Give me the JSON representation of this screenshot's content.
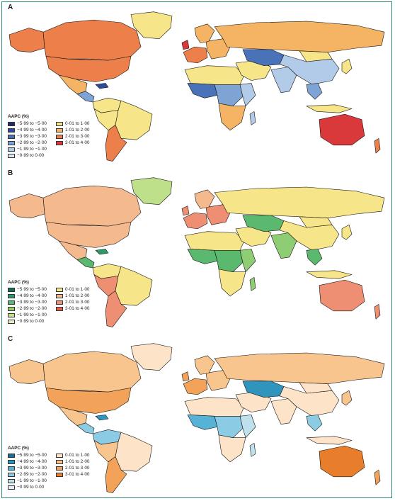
{
  "panels": [
    {
      "letter": "A",
      "legend_title": "AAPC (%)",
      "legend_left": [
        {
          "label": "−5·99 to −5·00",
          "color": "#1f2a6b"
        },
        {
          "label": "−4·99 to −4·00",
          "color": "#2e4b9a"
        },
        {
          "label": "−3·99 to −3·00",
          "color": "#4a72b8"
        },
        {
          "label": "−2·99 to −2·00",
          "color": "#7ea4d6"
        },
        {
          "label": "−1·99 to −1·00",
          "color": "#b2cbe8"
        },
        {
          "label": "−0·99 to 0·00",
          "color": "#dde8f4"
        }
      ],
      "legend_right": [
        {
          "label": "0·01 to 1·00",
          "color": "#f7e58a"
        },
        {
          "label": "1·01 to 2·00",
          "color": "#f5b364"
        },
        {
          "label": "2·01 to 3·00",
          "color": "#ec7f4a"
        },
        {
          "label": "3·01 to 4·00",
          "color": "#d9393a"
        }
      ],
      "palette": {
        "ocean": "#ffffff",
        "border": "#111111",
        "default": "#f7e58a"
      }
    },
    {
      "letter": "B",
      "legend_title": "AAPC (%)",
      "legend_left": [
        {
          "label": "−5·99 to −5·00",
          "color": "#0f6e5a"
        },
        {
          "label": "−4·99 to −4·00",
          "color": "#2c9a6c"
        },
        {
          "label": "−3·99 to −3·00",
          "color": "#5bb86f"
        },
        {
          "label": "−2·99 to −2·00",
          "color": "#8fcd74"
        },
        {
          "label": "−1·99 to −1·00",
          "color": "#bfe08a"
        },
        {
          "label": "−0·99 to 0·00",
          "color": "#e2efc0"
        }
      ],
      "legend_right": [
        {
          "label": "0·01 to 1·00",
          "color": "#f7e58a"
        },
        {
          "label": "1·01 to 2·00",
          "color": "#f5b98e"
        },
        {
          "label": "2·01 to 3·00",
          "color": "#ee8f73"
        },
        {
          "label": "3·01 to 4·00",
          "color": "#e0604f"
        }
      ],
      "palette": {
        "ocean": "#ffffff",
        "border": "#111111",
        "default": "#f7e58a"
      }
    },
    {
      "letter": "C",
      "legend_title": "AAPC (%)",
      "legend_left": [
        {
          "label": "−5·99 to −5·00",
          "color": "#1d6f8f"
        },
        {
          "label": "−4·99 to −4·00",
          "color": "#2f95bd"
        },
        {
          "label": "−3·99 to −3·00",
          "color": "#57b3d6"
        },
        {
          "label": "−2·99 to −2·00",
          "color": "#8ccbe4"
        },
        {
          "label": "−1·99 to −1·00",
          "color": "#bfe1ee"
        },
        {
          "label": "−0·99 to 0·00",
          "color": "#e3f1f6"
        }
      ],
      "legend_right": [
        {
          "label": "0·01 to 1·00",
          "color": "#fde4c8"
        },
        {
          "label": "1·01 to 2·00",
          "color": "#f9c58e"
        },
        {
          "label": "2·01 to 3·00",
          "color": "#f3a25a"
        },
        {
          "label": "3·01 to 4·00",
          "color": "#e87e2c"
        }
      ],
      "palette": {
        "ocean": "#ffffff",
        "border": "#111111",
        "default": "#fde4c8"
      }
    }
  ],
  "regions": [
    {
      "name": "canada",
      "values": [
        2.5,
        1.5,
        1.5
      ]
    },
    {
      "name": "greenland",
      "values": [
        0.5,
        -0.5,
        0.5
      ]
    },
    {
      "name": "usa",
      "values": [
        2.5,
        1.5,
        2.5
      ]
    },
    {
      "name": "alaska",
      "values": [
        2.5,
        1.5,
        1.5
      ]
    },
    {
      "name": "mexico",
      "values": [
        1.5,
        1.5,
        1.5
      ]
    },
    {
      "name": "central-america",
      "values": [
        -1.5,
        -2.5,
        -1.5
      ]
    },
    {
      "name": "caribbean",
      "values": [
        -3.5,
        -3.5,
        -3.5
      ]
    },
    {
      "name": "colombia-venezuela",
      "values": [
        0.5,
        0.5,
        -1.5
      ]
    },
    {
      "name": "brazil",
      "values": [
        0.5,
        0.5,
        0.5
      ]
    },
    {
      "name": "peru-bolivia",
      "values": [
        0.5,
        2.5,
        1.5
      ]
    },
    {
      "name": "argentina-chile",
      "values": [
        2.5,
        2.5,
        2.5
      ]
    },
    {
      "name": "uk",
      "values": [
        3.5,
        2.5,
        2.5
      ]
    },
    {
      "name": "western-europe",
      "values": [
        2.5,
        2.5,
        2.5
      ]
    },
    {
      "name": "eastern-europe",
      "values": [
        1.5,
        2.5,
        1.5
      ]
    },
    {
      "name": "scandinavia",
      "values": [
        1.5,
        1.5,
        1.5
      ]
    },
    {
      "name": "russia",
      "values": [
        1.5,
        0.5,
        1.5
      ]
    },
    {
      "name": "north-africa",
      "values": [
        0.5,
        0.5,
        0.5
      ]
    },
    {
      "name": "west-africa",
      "values": [
        -2.5,
        -2.5,
        -2.5
      ]
    },
    {
      "name": "central-africa",
      "values": [
        -1.5,
        -2.5,
        -1.5
      ]
    },
    {
      "name": "east-africa",
      "values": [
        -0.5,
        -1.5,
        -0.5
      ]
    },
    {
      "name": "southern-africa",
      "values": [
        1.5,
        0.5,
        0.5
      ]
    },
    {
      "name": "madagascar",
      "values": [
        -0.5,
        -1.5,
        -0.5
      ]
    },
    {
      "name": "middle-east",
      "values": [
        0.5,
        0.5,
        0.5
      ]
    },
    {
      "name": "central-asia",
      "values": [
        -2.5,
        -2.5,
        -3.5
      ]
    },
    {
      "name": "south-asia",
      "values": [
        -0.5,
        -1.5,
        0.5
      ]
    },
    {
      "name": "china",
      "values": [
        -0.5,
        0.5,
        0.5
      ]
    },
    {
      "name": "mongolia",
      "values": [
        0.5,
        0.5,
        0.5
      ]
    },
    {
      "name": "japan-korea",
      "values": [
        0.5,
        0.5,
        1.5
      ]
    },
    {
      "name": "southeast-asia",
      "values": [
        -1.5,
        -2.5,
        -1.5
      ]
    },
    {
      "name": "indonesia",
      "values": [
        0.5,
        0.5,
        0.5
      ]
    },
    {
      "name": "australia",
      "values": [
        3.5,
        2.5,
        3.5
      ]
    },
    {
      "name": "new-zealand",
      "values": [
        2.5,
        2.5,
        2.5
      ]
    }
  ]
}
